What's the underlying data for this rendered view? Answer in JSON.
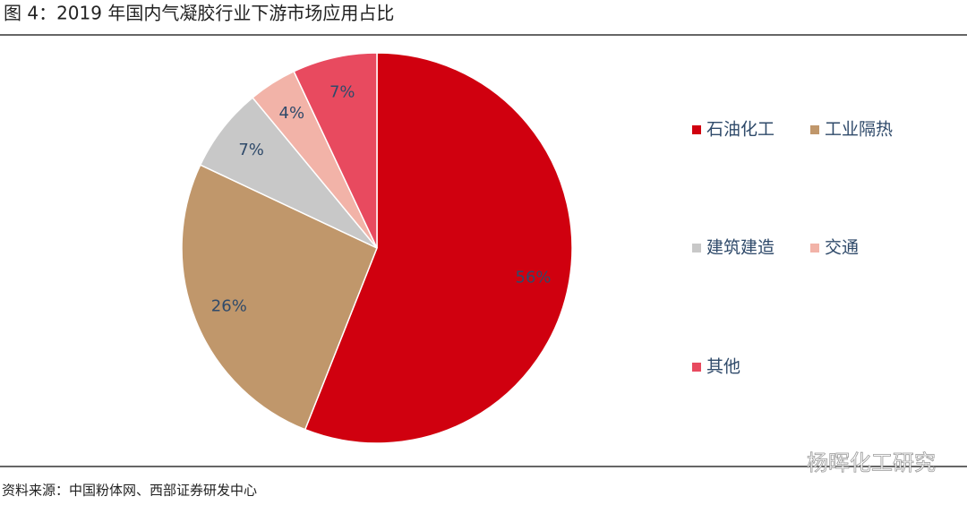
{
  "chart_data": {
    "type": "pie",
    "title": "图 4：2019 年国内气凝胶行业下游市场应用占比",
    "categories": [
      "石油化工",
      "工业隔热",
      "建筑建造",
      "交通",
      "其他"
    ],
    "values": [
      56,
      26,
      7,
      4,
      7
    ],
    "value_labels": [
      "56%",
      "26%",
      "7%",
      "4%",
      "7%"
    ],
    "colors": [
      "#d0000f",
      "#c0976b",
      "#c8c8c8",
      "#f2b3a8",
      "#e84a5f"
    ],
    "source": "资料来源：中国粉体网、西部证券研发中心",
    "watermark": "杨晖化工研究"
  }
}
